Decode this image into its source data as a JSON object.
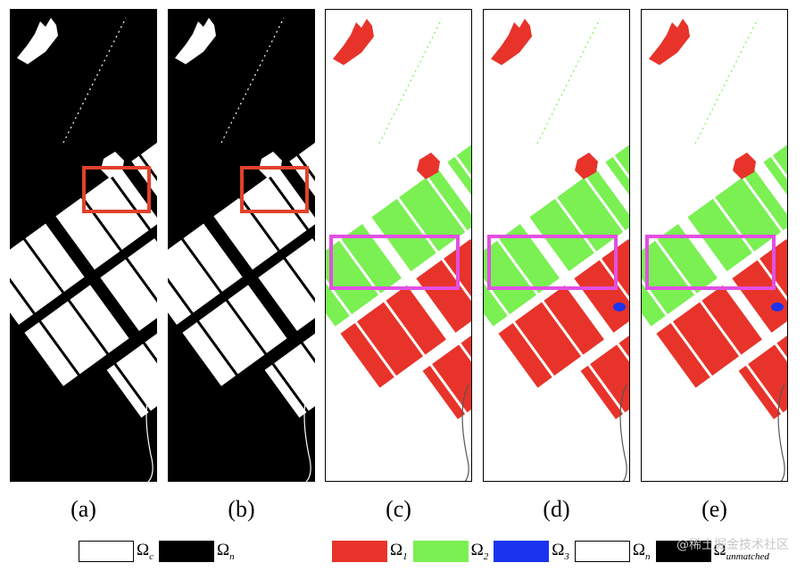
{
  "colors": {
    "omega_1": "#e8332a",
    "omega_2": "#7af053",
    "omega_3": "#1b33ee",
    "omega_c": "#ffffff",
    "omega_n": "#000000",
    "box_ab": "#e2412b",
    "box_cde": "#e34fe3"
  },
  "panels": [
    {
      "label": "(a)",
      "kind": "binary"
    },
    {
      "label": "(b)",
      "kind": "binary"
    },
    {
      "label": "(c)",
      "kind": "multiclass"
    },
    {
      "label": "(d)",
      "kind": "multiclass"
    },
    {
      "label": "(e)",
      "kind": "multiclass"
    }
  ],
  "legend_left": {
    "omega_c": {
      "symbol": "Ω",
      "sub": "c"
    },
    "omega_n": {
      "symbol": "Ω",
      "sub": "n"
    }
  },
  "legend_right": {
    "omega_1": {
      "symbol": "Ω",
      "sub": "1"
    },
    "omega_2": {
      "symbol": "Ω",
      "sub": "2"
    },
    "omega_3": {
      "symbol": "Ω",
      "sub": "3"
    },
    "omega_n": {
      "symbol": "Ω",
      "sub": "n"
    },
    "omega_unmatched": {
      "symbol": "Ω",
      "sub": "unmatched"
    }
  },
  "watermark": "@稀土掘金技术社区"
}
